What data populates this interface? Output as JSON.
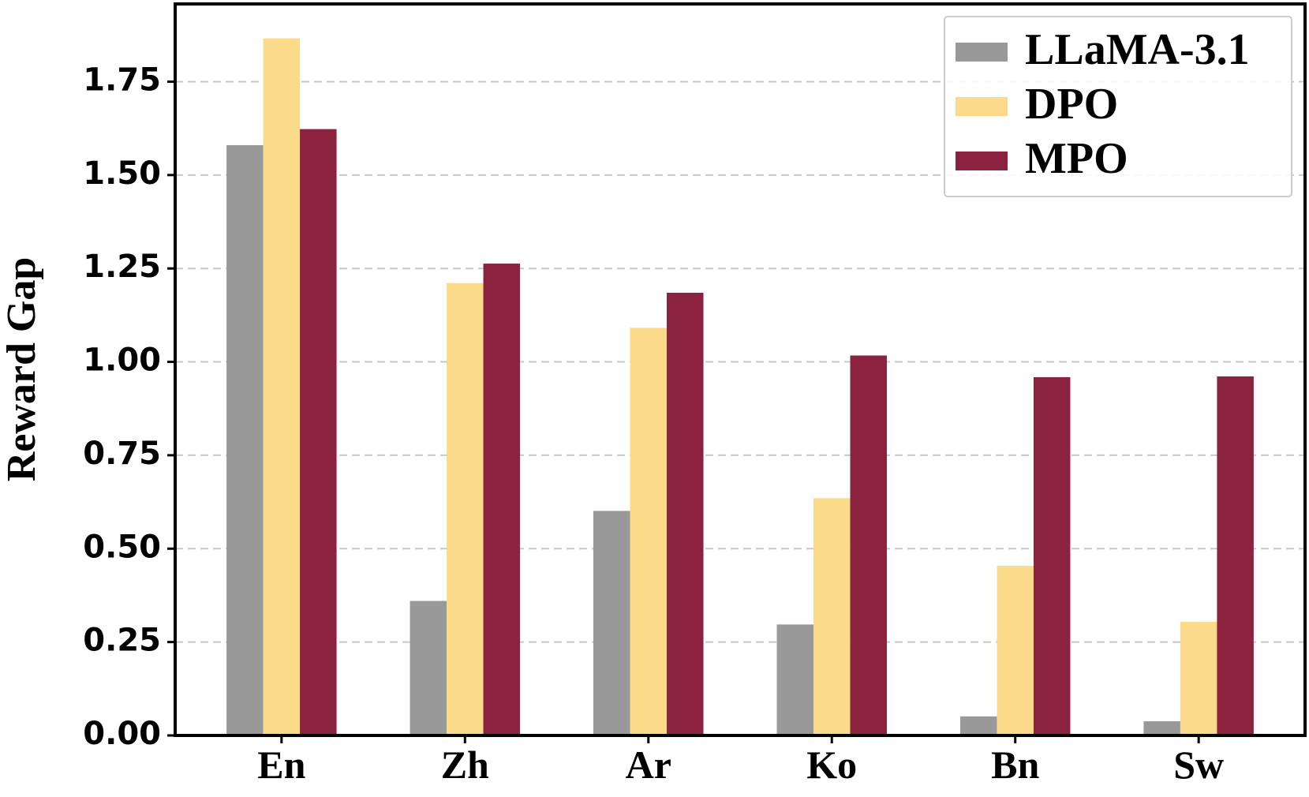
{
  "chart_data": {
    "type": "bar",
    "y_label": "Reward Gap",
    "categories": [
      "En",
      "Zh",
      "Ar",
      "Ko",
      "Bn",
      "Sw"
    ],
    "series": [
      {
        "name": "LLaMA-3.1",
        "color": "#999999",
        "values": [
          1.58,
          0.36,
          0.601,
          0.297,
          0.051,
          0.038
        ]
      },
      {
        "name": "DPO",
        "color": "#fbdb8a",
        "values": [
          1.866,
          1.211,
          1.091,
          0.635,
          0.454,
          0.304
        ]
      },
      {
        "name": "MPO",
        "color": "#8b2240",
        "values": [
          1.623,
          1.263,
          1.185,
          1.017,
          0.959,
          0.961
        ]
      }
    ],
    "ylim": [
      0,
      1.958
    ],
    "yticks": [
      {
        "value": 0,
        "label": "0.00"
      },
      {
        "value": 0.25,
        "label": "0.25"
      },
      {
        "value": 0.5,
        "label": "0.50"
      },
      {
        "value": 0.75,
        "label": "0.75"
      },
      {
        "value": 1,
        "label": "1.00"
      },
      {
        "value": 1.25,
        "label": "1.25"
      },
      {
        "value": 1.5,
        "label": "1.50"
      },
      {
        "value": 1.75,
        "label": "1.75"
      }
    ],
    "grid": true,
    "legend": "upper right"
  }
}
